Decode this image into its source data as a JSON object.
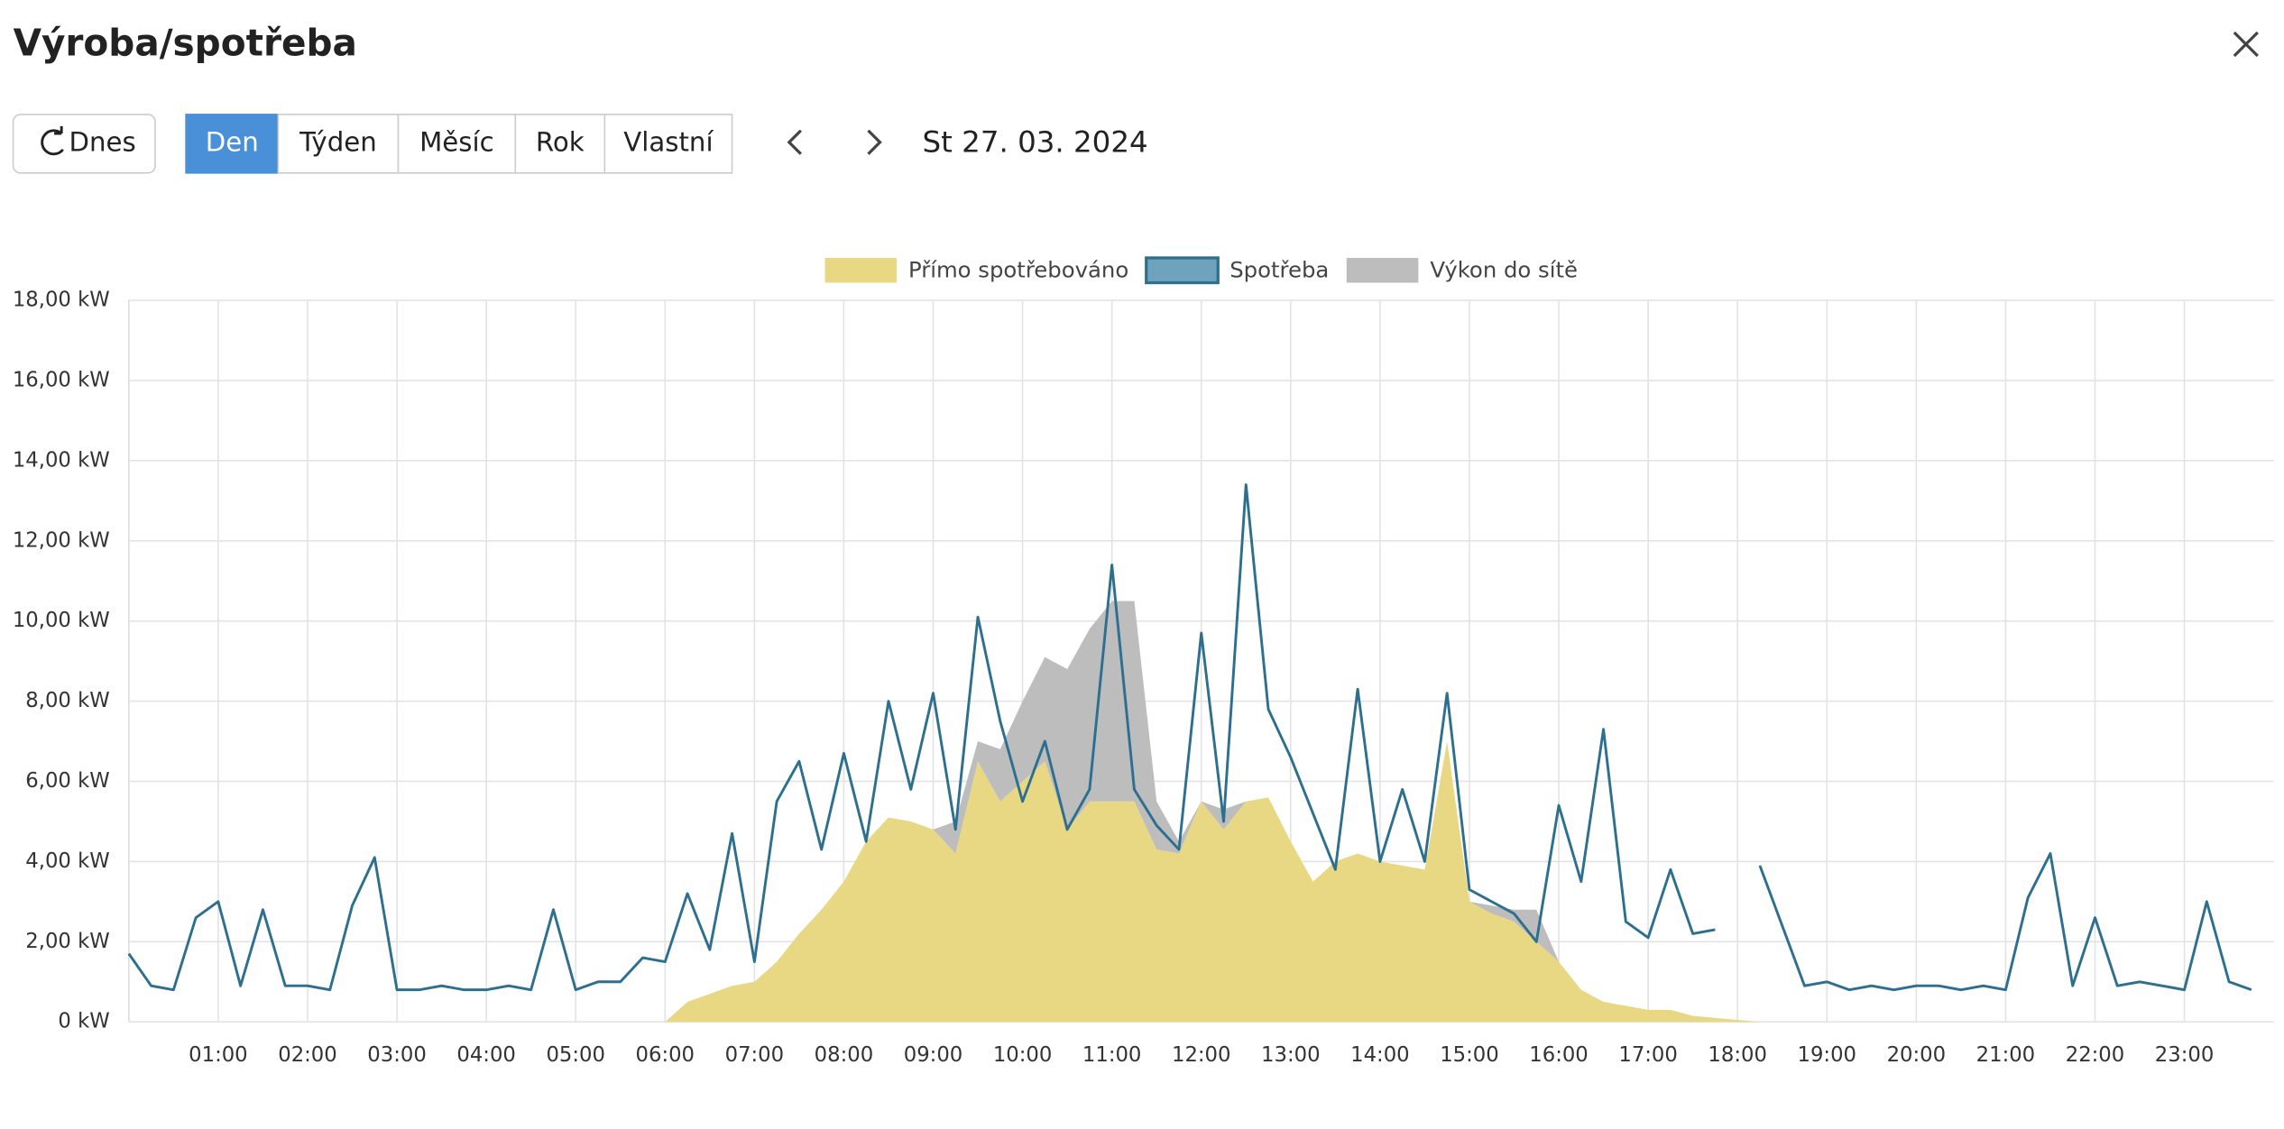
{
  "header": {
    "title": "Výroba/spotřeba"
  },
  "toolbar": {
    "today": "Dnes",
    "periods": [
      "Den",
      "Týden",
      "Měsíc",
      "Rok",
      "Vlastní"
    ],
    "active_period": "Den",
    "date": "St 27. 03. 2024"
  },
  "chart_data": {
    "type": "area",
    "x": [
      "00:00",
      "00:15",
      "00:30",
      "00:45",
      "01:00",
      "01:15",
      "01:30",
      "01:45",
      "02:00",
      "02:15",
      "02:30",
      "02:45",
      "03:00",
      "03:15",
      "03:30",
      "03:45",
      "04:00",
      "04:15",
      "04:30",
      "04:45",
      "05:00",
      "05:15",
      "05:30",
      "05:45",
      "06:00",
      "06:15",
      "06:30",
      "06:45",
      "07:00",
      "07:15",
      "07:30",
      "07:45",
      "08:00",
      "08:15",
      "08:30",
      "08:45",
      "09:00",
      "09:15",
      "09:30",
      "09:45",
      "10:00",
      "10:15",
      "10:30",
      "10:45",
      "11:00",
      "11:15",
      "11:30",
      "11:45",
      "12:00",
      "12:15",
      "12:30",
      "12:45",
      "13:00",
      "13:15",
      "13:30",
      "13:45",
      "14:00",
      "14:15",
      "14:30",
      "14:45",
      "15:00",
      "15:15",
      "15:30",
      "15:45",
      "16:00",
      "16:15",
      "16:30",
      "16:45",
      "17:00",
      "17:15",
      "17:30",
      "17:45",
      "18:00",
      "18:15",
      "18:30",
      "18:45",
      "19:00",
      "19:15",
      "19:30",
      "19:45",
      "20:00",
      "20:15",
      "20:30",
      "20:45",
      "21:00",
      "21:15",
      "21:30",
      "21:45",
      "22:00",
      "22:15",
      "22:30",
      "22:45",
      "23:00",
      "23:15",
      "23:30",
      "23:45"
    ],
    "series": [
      {
        "name": "Přímo spotřebováno",
        "type": "area",
        "color": "#e8d883",
        "values": [
          0,
          0,
          0,
          0,
          0,
          0,
          0,
          0,
          0,
          0,
          0,
          0,
          0,
          0,
          0,
          0,
          0,
          0,
          0,
          0,
          0,
          0,
          0,
          0,
          0,
          0.5,
          0.7,
          0.9,
          1.0,
          1.5,
          2.2,
          2.8,
          3.5,
          4.5,
          5.1,
          5.0,
          4.8,
          4.2,
          6.5,
          5.5,
          6.0,
          6.5,
          4.8,
          5.5,
          5.5,
          5.5,
          4.3,
          4.2,
          5.5,
          4.8,
          5.5,
          5.6,
          4.5,
          3.5,
          4.0,
          4.2,
          4.0,
          3.9,
          3.8,
          7.0,
          3.0,
          2.7,
          2.5,
          2.0,
          1.5,
          0.8,
          0.5,
          0.4,
          0.3,
          0.3,
          0.15,
          0.1,
          0.05,
          0,
          0,
          0,
          0,
          0,
          0,
          0,
          0,
          0,
          0,
          0,
          0,
          0,
          0,
          0,
          0,
          0,
          0,
          0,
          0,
          0,
          0,
          0
        ]
      },
      {
        "name": "Spotřeba",
        "type": "line",
        "color": "#2d6f8e",
        "legend_fill": "#6fa3bd",
        "values": [
          1.7,
          0.9,
          0.8,
          2.6,
          3.0,
          0.9,
          2.8,
          0.9,
          0.9,
          0.8,
          2.9,
          4.1,
          0.8,
          0.8,
          0.9,
          0.8,
          0.8,
          0.9,
          0.8,
          2.8,
          0.8,
          1.0,
          1.0,
          1.6,
          1.5,
          3.2,
          1.8,
          4.7,
          1.5,
          5.5,
          6.5,
          4.3,
          6.7,
          4.5,
          8.0,
          5.8,
          8.2,
          4.8,
          10.1,
          7.5,
          5.5,
          7.0,
          4.8,
          5.8,
          11.4,
          5.8,
          4.9,
          4.3,
          9.7,
          5.0,
          13.4,
          7.8,
          6.6,
          5.2,
          3.8,
          8.3,
          4.0,
          5.8,
          4.0,
          8.2,
          3.3,
          3.0,
          2.7,
          2.0,
          5.4,
          3.5,
          7.3,
          2.5,
          2.1,
          3.8,
          2.2,
          2.3,
          null,
          3.9,
          2.4,
          0.9,
          1.0,
          0.8,
          0.9,
          0.8,
          0.9,
          0.9,
          0.8,
          0.9,
          0.8,
          3.1,
          4.2,
          0.9,
          2.6,
          0.9,
          1.0,
          0.9,
          0.8,
          3.0,
          1.0,
          0.8
        ]
      },
      {
        "name": "Výkon do sítě",
        "type": "area",
        "stack": true,
        "color": "#bdbdbd",
        "values": [
          0,
          0,
          0,
          0,
          0,
          0,
          0,
          0,
          0,
          0,
          0,
          0,
          0,
          0,
          0,
          0,
          0,
          0,
          0,
          0,
          0,
          0,
          0,
          0,
          0,
          0,
          0,
          0,
          0,
          0,
          0,
          0,
          0,
          0,
          0,
          0,
          0,
          0.8,
          0.5,
          1.3,
          2.0,
          2.6,
          4.0,
          4.3,
          5.0,
          5.0,
          1.2,
          0.3,
          0,
          0.5,
          0,
          0,
          0,
          0,
          0,
          0,
          0,
          0,
          0,
          0,
          0,
          0.2,
          0.3,
          0.8,
          0,
          0,
          0,
          0,
          0,
          0,
          0,
          0,
          0,
          0,
          0,
          0,
          0,
          0,
          0,
          0,
          0,
          0,
          0,
          0,
          0,
          0,
          0,
          0,
          0,
          0,
          0,
          0,
          0,
          0,
          0,
          0
        ]
      }
    ],
    "xlim": [
      "00:00",
      "24:00"
    ],
    "xticks": [
      "01:00",
      "02:00",
      "03:00",
      "04:00",
      "05:00",
      "06:00",
      "07:00",
      "08:00",
      "09:00",
      "10:00",
      "11:00",
      "12:00",
      "13:00",
      "14:00",
      "15:00",
      "16:00",
      "17:00",
      "18:00",
      "19:00",
      "20:00",
      "21:00",
      "22:00",
      "23:00"
    ],
    "ylim": [
      0,
      18
    ],
    "yticks": [
      {
        "value": 0,
        "label": "0 kW"
      },
      {
        "value": 2,
        "label": "2,00 kW"
      },
      {
        "value": 4,
        "label": "4,00 kW"
      },
      {
        "value": 6,
        "label": "6,00 kW"
      },
      {
        "value": 8,
        "label": "8,00 kW"
      },
      {
        "value": 10,
        "label": "10,00 kW"
      },
      {
        "value": 12,
        "label": "12,00 kW"
      },
      {
        "value": 14,
        "label": "14,00 kW"
      },
      {
        "value": 16,
        "label": "16,00 kW"
      },
      {
        "value": 18,
        "label": "18,00 kW"
      }
    ],
    "grid": true,
    "legend": "top"
  }
}
